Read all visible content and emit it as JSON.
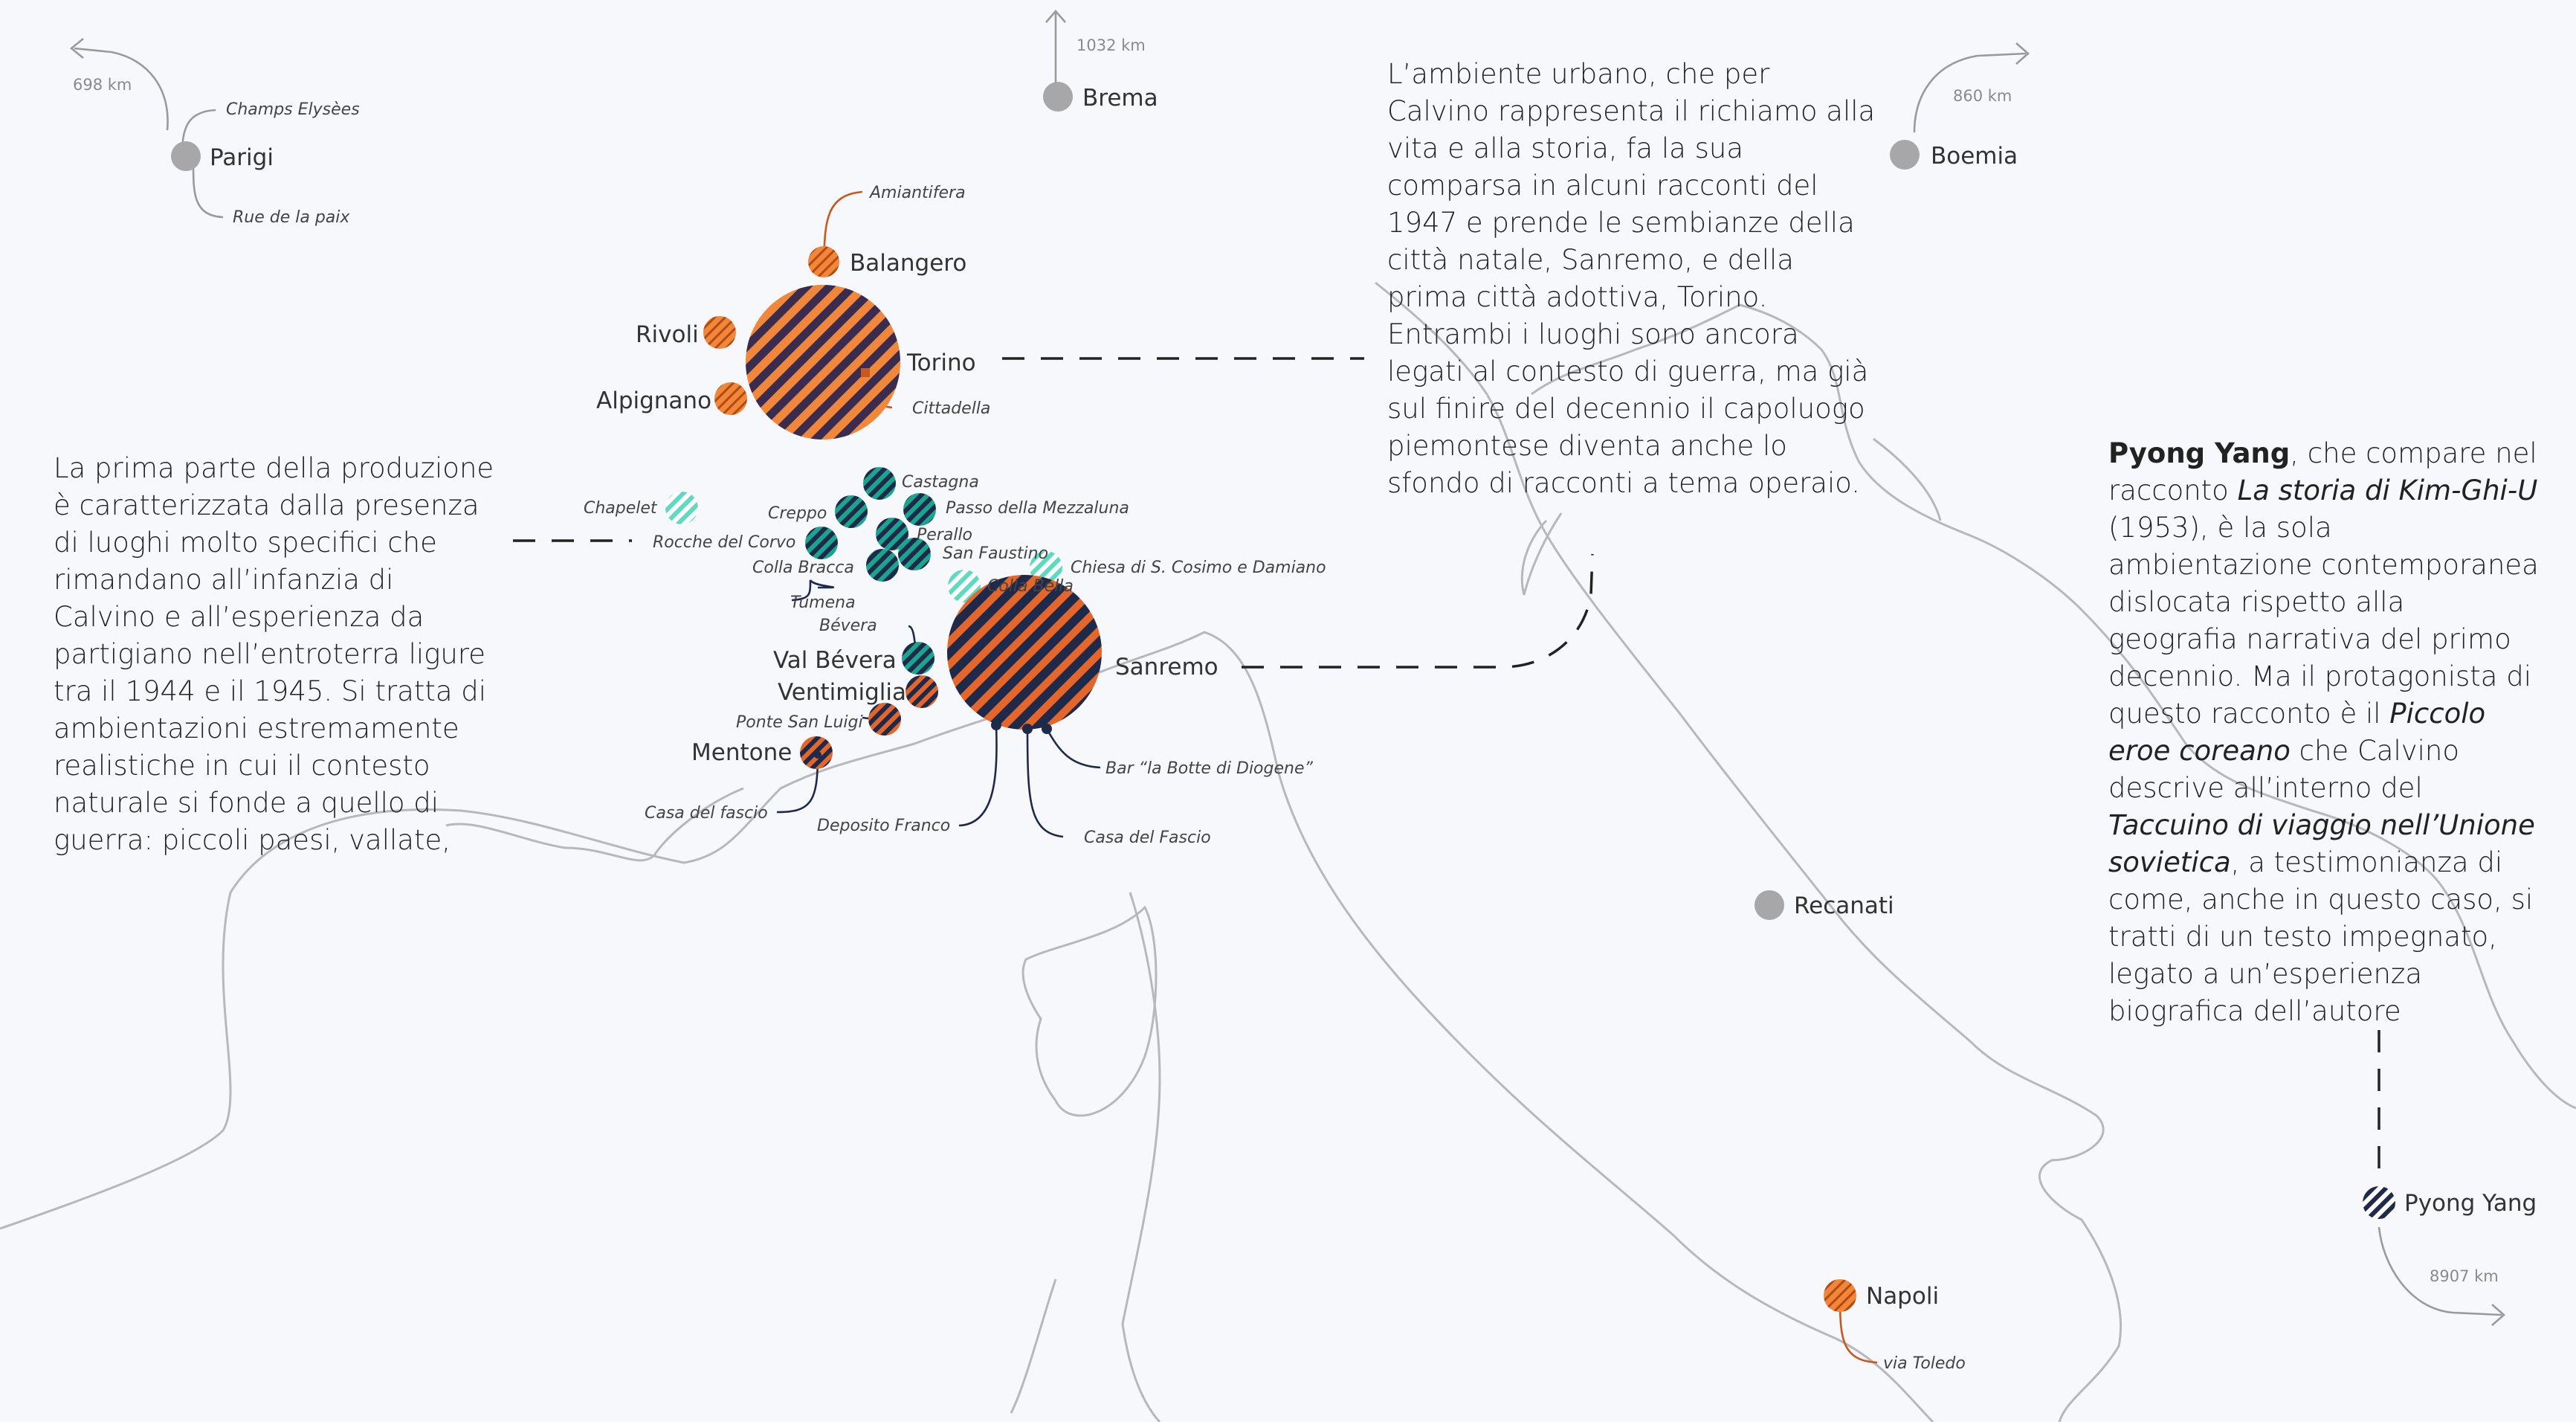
{
  "distances": {
    "parigi": "698 km",
    "brema": "1032 km",
    "boemia": "860 km",
    "pyongyang": "8907 km"
  },
  "places": {
    "parigi": "Parigi",
    "champs": "Champs Elysèes",
    "paix": "Rue de la paix",
    "brema": "Brema",
    "boemia": "Boemia",
    "amiantifera": "Amiantifera",
    "balangero": "Balangero",
    "rivoli": "Rivoli",
    "alpignano": "Alpignano",
    "torino": "Torino",
    "cittadella": "Cittadella",
    "chapelet": "Chapelet",
    "castagna": "Castagna",
    "creppo": "Creppo",
    "mezzaluna": "Passo della Mezzaluna",
    "perallo": "Perallo",
    "rocche": "Rocche del Corvo",
    "faustino": "San Faustino",
    "collabracca": "Colla Bracca",
    "chiesa": "Chiesa di S. Cosimo e Damiano",
    "collabella": "Colla Bella",
    "tumena": "Tumena",
    "bevera": "Bévera",
    "valbevera": "Val Bévera",
    "ventimiglia": "Ventimiglia",
    "pontesanluigi": "Ponte San Luigi",
    "mentone": "Mentone",
    "casafascio1": "Casa del fascio",
    "sanremo": "Sanremo",
    "bar": "Bar “la Botte di Diogene”",
    "deposito": "Deposito Franco",
    "casafascio2": "Casa del Fascio",
    "recanati": "Recanati",
    "napoli": "Napoli",
    "toledo": "via Toledo",
    "pyongyang": "Pyong Yang"
  },
  "texts": {
    "left": "La prima parte della produzione è caratterizzata dalla presenza di luoghi molto specifici che rimandano all’infanzia di Calvino e all’esperienza da partigiano nell’entroterra ligure tra il 1944 e il 1945. Si tratta di ambientazioni estremamente realistiche in cui il contesto naturale si fonde a quello di guerra: piccoli paesi, vallate,",
    "middle": "L’ambiente urbano, che per Calvino rappresenta il richiamo alla vita e alla storia, fa la sua comparsa in alcuni racconti del 1947 e prende le sembianze della città natale, Sanremo, e della prima città adottiva, Torino. Entrambi i luoghi sono ancora legati al contesto di guerra, ma già sul finire del decennio il capoluogo piemontese diventa anche lo sfondo di racconti a tema operaio.",
    "right_bold": "Pyong Yang",
    "right_1": ", che compare nel racconto ",
    "right_title1": "La storia di Kim-Ghi-U",
    "right_2": " (1953), è la sola ambientazione contemporanea dislocata rispetto alla geografia narrativa del primo decennio. Ma il protagonista di questo racconto è il ",
    "right_title2": "Piccolo eroe coreano",
    "right_3": " che Calvino descrive all’interno del ",
    "right_title3": "Taccuino di viaggio nell’Unione sovietica",
    "right_4": ", a testimonianza di come, anche in questo caso, si tratti  di un testo impegnato, legato a un’esperienza biografica dell’autore"
  },
  "colors": {
    "orange": "#f0873a",
    "orange_stripe": "#b34a10",
    "navy": "#1f2a4a",
    "teal": "#1aa58e",
    "teal_light": "#7fe3cf",
    "gray": "#a7a7aa",
    "background": "#f7f8fc"
  }
}
